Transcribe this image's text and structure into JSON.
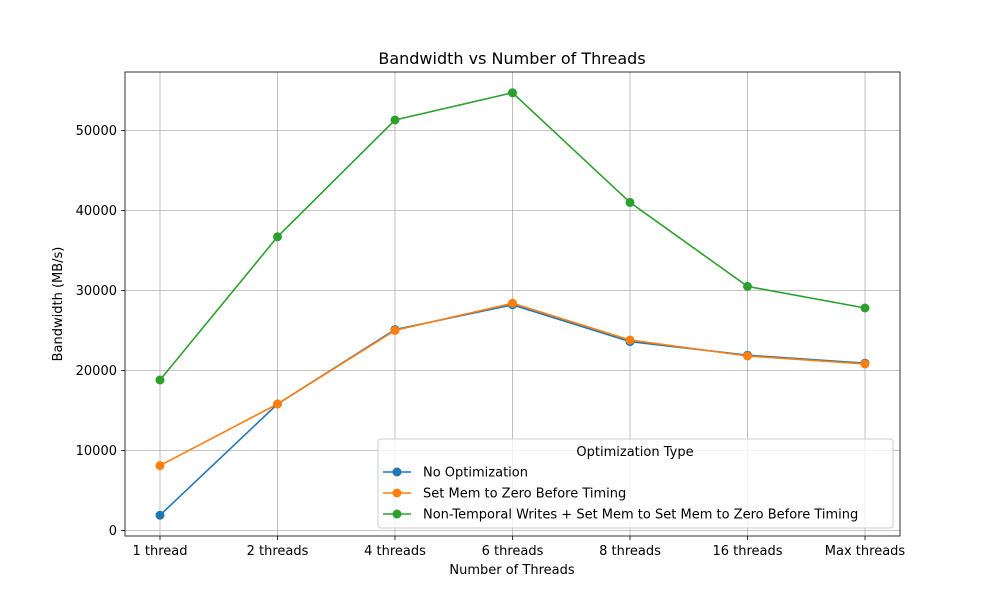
{
  "chart_data": {
    "type": "line",
    "title": "Bandwidth vs Number of Threads",
    "xlabel": "Number of Threads",
    "ylabel": "Bandwidth (MB/s)",
    "categories": [
      "1 thread",
      "2 threads",
      "4 threads",
      "6 threads",
      "8 threads",
      "16 threads",
      "Max threads"
    ],
    "ylim": [
      -700,
      57300
    ],
    "yticks": [
      0,
      10000,
      20000,
      30000,
      40000,
      50000
    ],
    "grid": true,
    "legend": {
      "title": "Optimization Type",
      "placement": "lower-right"
    },
    "series": [
      {
        "name": "No Optimization",
        "color": "#1f77b4",
        "values": [
          1900,
          15800,
          25100,
          28200,
          23600,
          21900,
          20900
        ]
      },
      {
        "name": "Set Mem to Zero Before Timing",
        "color": "#ff7f0e",
        "values": [
          8100,
          15800,
          25000,
          28400,
          23800,
          21800,
          20800
        ]
      },
      {
        "name": "Non-Temporal Writes + Set Mem to Set Mem to Zero Before Timing",
        "color": "#2ca02c",
        "values": [
          18800,
          36700,
          51300,
          54700,
          41000,
          30500,
          27800
        ]
      }
    ]
  }
}
